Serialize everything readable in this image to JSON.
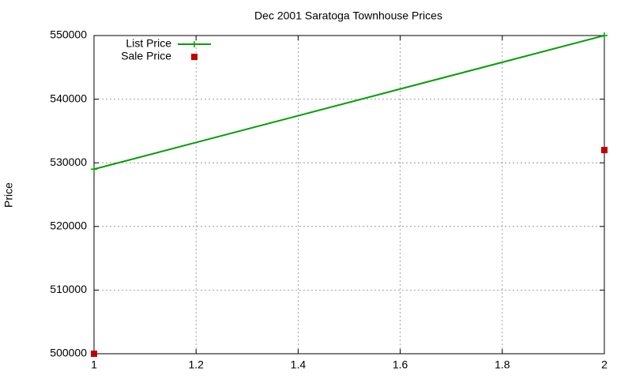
{
  "chart_data": {
    "type": "line",
    "title": "Dec 2001 Saratoga Townhouse Prices",
    "y_label": "Price",
    "x": [
      1,
      2
    ],
    "series": [
      {
        "name": "List Price",
        "color": "#009e00",
        "mode": "lines+points",
        "values": [
          529000,
          550000
        ]
      },
      {
        "name": "Sale Price",
        "color": "#c00000",
        "mode": "points",
        "values": [
          500000,
          532000
        ]
      }
    ],
    "xlim": [
      1,
      2
    ],
    "xticks": [
      1,
      1.2,
      1.4,
      1.6,
      1.8,
      2
    ],
    "ylim": [
      500000,
      550000
    ],
    "yticks": [
      500000,
      510000,
      520000,
      530000,
      540000,
      550000
    ],
    "grid": true,
    "legend": "top-left"
  }
}
